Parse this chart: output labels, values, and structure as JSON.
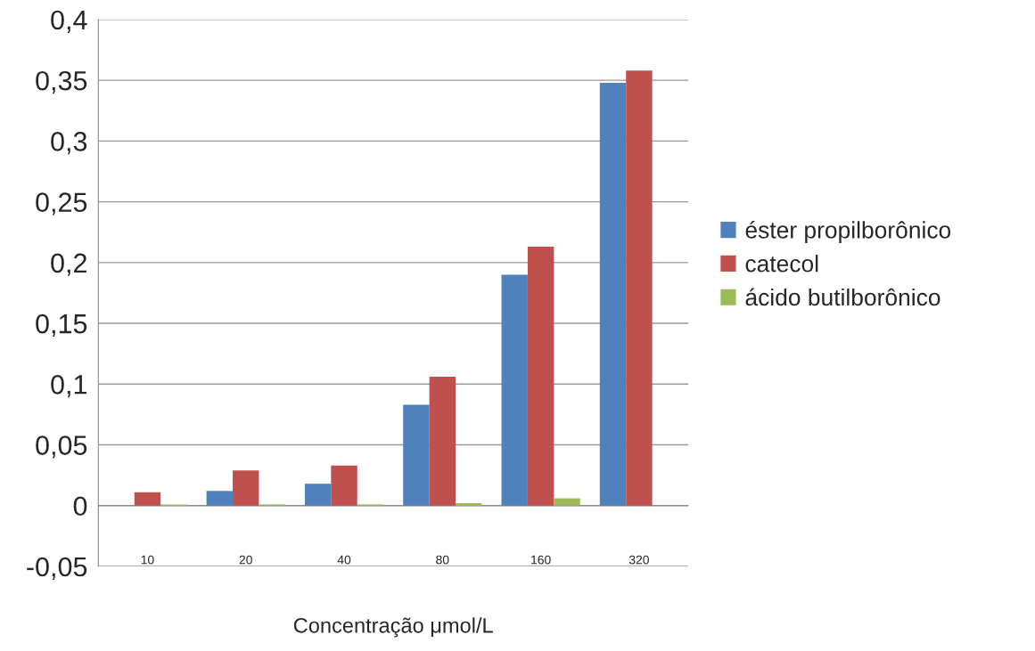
{
  "chart_data": {
    "type": "bar",
    "xlabel": "Concentração μmol/L",
    "categories": [
      "10",
      "20",
      "40",
      "80",
      "160",
      "320"
    ],
    "series": [
      {
        "name": "éster propilborônico",
        "color": "#4f81bd",
        "values": [
          null,
          0.012,
          0.018,
          0.083,
          0.19,
          0.348
        ]
      },
      {
        "name": "catecol",
        "color": "#c0504d",
        "values": [
          0.011,
          0.029,
          0.033,
          0.106,
          0.213,
          0.358
        ]
      },
      {
        "name": "ácido butilborônico",
        "color": "#9bbb59",
        "values": [
          0.001,
          0.001,
          0.001,
          0.002,
          0.006,
          null
        ]
      }
    ],
    "ylim": [
      -0.05,
      0.4
    ],
    "yticks": [
      {
        "value": -0.05,
        "label": "-0,05"
      },
      {
        "value": 0,
        "label": "0"
      },
      {
        "value": 0.05,
        "label": "0,05"
      },
      {
        "value": 0.1,
        "label": "0,1"
      },
      {
        "value": 0.15,
        "label": "0,15"
      },
      {
        "value": 0.2,
        "label": "0,2"
      },
      {
        "value": 0.25,
        "label": "0,25"
      },
      {
        "value": 0.3,
        "label": "0,3"
      },
      {
        "value": 0.35,
        "label": "0,35"
      },
      {
        "value": 0.4,
        "label": "0,4"
      }
    ],
    "grid": "y",
    "legend": "right"
  }
}
